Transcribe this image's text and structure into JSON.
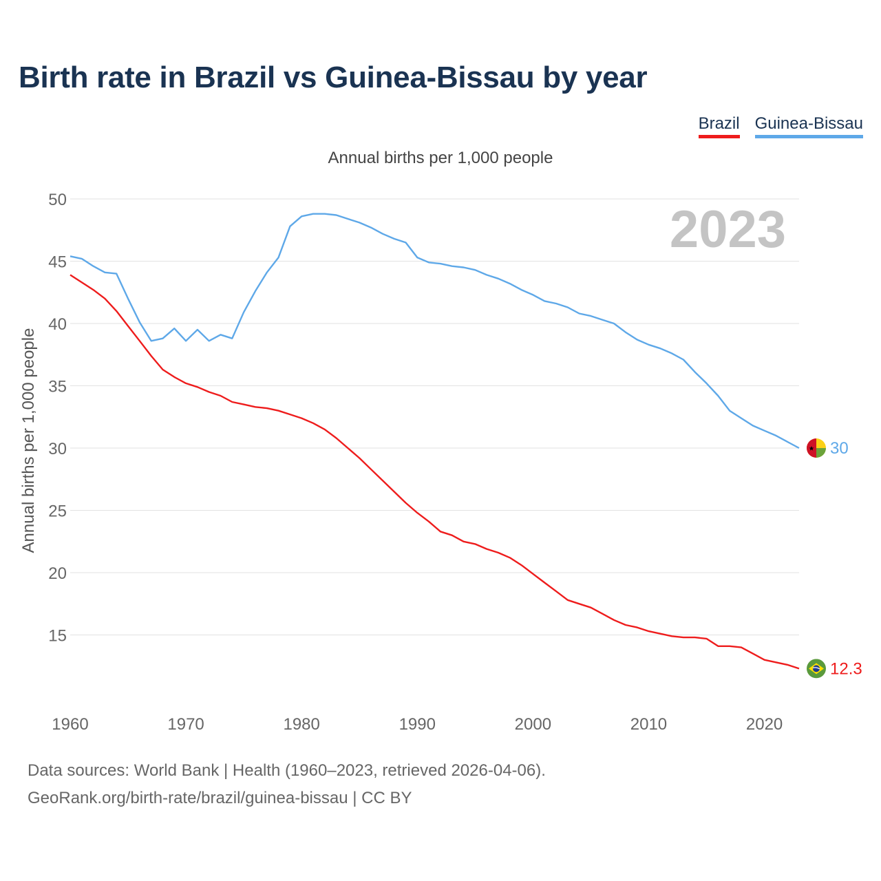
{
  "title": "Birth rate in Brazil vs Guinea-Bissau by year",
  "subtitle": "Annual births per 1,000 people",
  "year_label": "2023",
  "legend": [
    {
      "name": "Brazil",
      "color": "#ee1c1c"
    },
    {
      "name": "Guinea-Bissau",
      "color": "#5ea8e8"
    }
  ],
  "footer": {
    "sources": "Data sources: World Bank | Health (1960–2023, retrieved 2026-04-06).",
    "url": "GeoRank.org/birth-rate/brazil/guinea-bissau | CC BY"
  },
  "chart_data": {
    "type": "line",
    "title": "Birth rate in Brazil vs Guinea-Bissau by year",
    "ylabel": "Annual births per 1,000 people",
    "xlabel": "",
    "ylim": [
      10,
      50
    ],
    "xlim": [
      1960,
      2023
    ],
    "yticks": [
      15,
      20,
      25,
      30,
      35,
      40,
      45,
      50
    ],
    "xticks": [
      1960,
      1970,
      1980,
      1990,
      2000,
      2010,
      2020
    ],
    "grid": true,
    "x": [
      1960,
      1961,
      1962,
      1963,
      1964,
      1965,
      1966,
      1967,
      1968,
      1969,
      1970,
      1971,
      1972,
      1973,
      1974,
      1975,
      1976,
      1977,
      1978,
      1979,
      1980,
      1981,
      1982,
      1983,
      1984,
      1985,
      1986,
      1987,
      1988,
      1989,
      1990,
      1991,
      1992,
      1993,
      1994,
      1995,
      1996,
      1997,
      1998,
      1999,
      2000,
      2001,
      2002,
      2003,
      2004,
      2005,
      2006,
      2007,
      2008,
      2009,
      2010,
      2011,
      2012,
      2013,
      2014,
      2015,
      2016,
      2017,
      2018,
      2019,
      2020,
      2021,
      2022,
      2023
    ],
    "series": [
      {
        "name": "Brazil",
        "color": "#ee1c1c",
        "end_label": "12.3",
        "values": [
          43.9,
          43.3,
          42.7,
          42.0,
          41.0,
          39.8,
          38.6,
          37.4,
          36.3,
          35.7,
          35.2,
          34.9,
          34.5,
          34.2,
          33.7,
          33.5,
          33.3,
          33.2,
          33.0,
          32.7,
          32.4,
          32.0,
          31.5,
          30.8,
          30.0,
          29.2,
          28.3,
          27.4,
          26.5,
          25.6,
          24.8,
          24.1,
          23.3,
          23.0,
          22.5,
          22.3,
          21.9,
          21.6,
          21.2,
          20.6,
          19.9,
          19.2,
          18.5,
          17.8,
          17.5,
          17.2,
          16.7,
          16.2,
          15.8,
          15.6,
          15.3,
          15.1,
          14.9,
          14.8,
          14.8,
          14.7,
          14.1,
          14.1,
          14.0,
          13.5,
          13.0,
          12.8,
          12.6,
          12.3
        ]
      },
      {
        "name": "Guinea-Bissau",
        "color": "#5ea8e8",
        "end_label": "30",
        "values": [
          45.4,
          45.2,
          44.6,
          44.1,
          44.0,
          42.0,
          40.1,
          38.6,
          38.8,
          39.6,
          38.6,
          39.5,
          38.6,
          39.1,
          38.8,
          40.9,
          42.6,
          44.1,
          45.3,
          47.8,
          48.6,
          48.8,
          48.8,
          48.7,
          48.4,
          48.1,
          47.7,
          47.2,
          46.8,
          46.5,
          45.3,
          44.9,
          44.8,
          44.6,
          44.5,
          44.3,
          43.9,
          43.6,
          43.2,
          42.7,
          42.3,
          41.8,
          41.6,
          41.3,
          40.8,
          40.6,
          40.3,
          40.0,
          39.3,
          38.7,
          38.3,
          38.0,
          37.6,
          37.1,
          36.1,
          35.2,
          34.2,
          33.0,
          32.4,
          31.8,
          31.4,
          31.0,
          30.5,
          30.0
        ]
      }
    ]
  }
}
